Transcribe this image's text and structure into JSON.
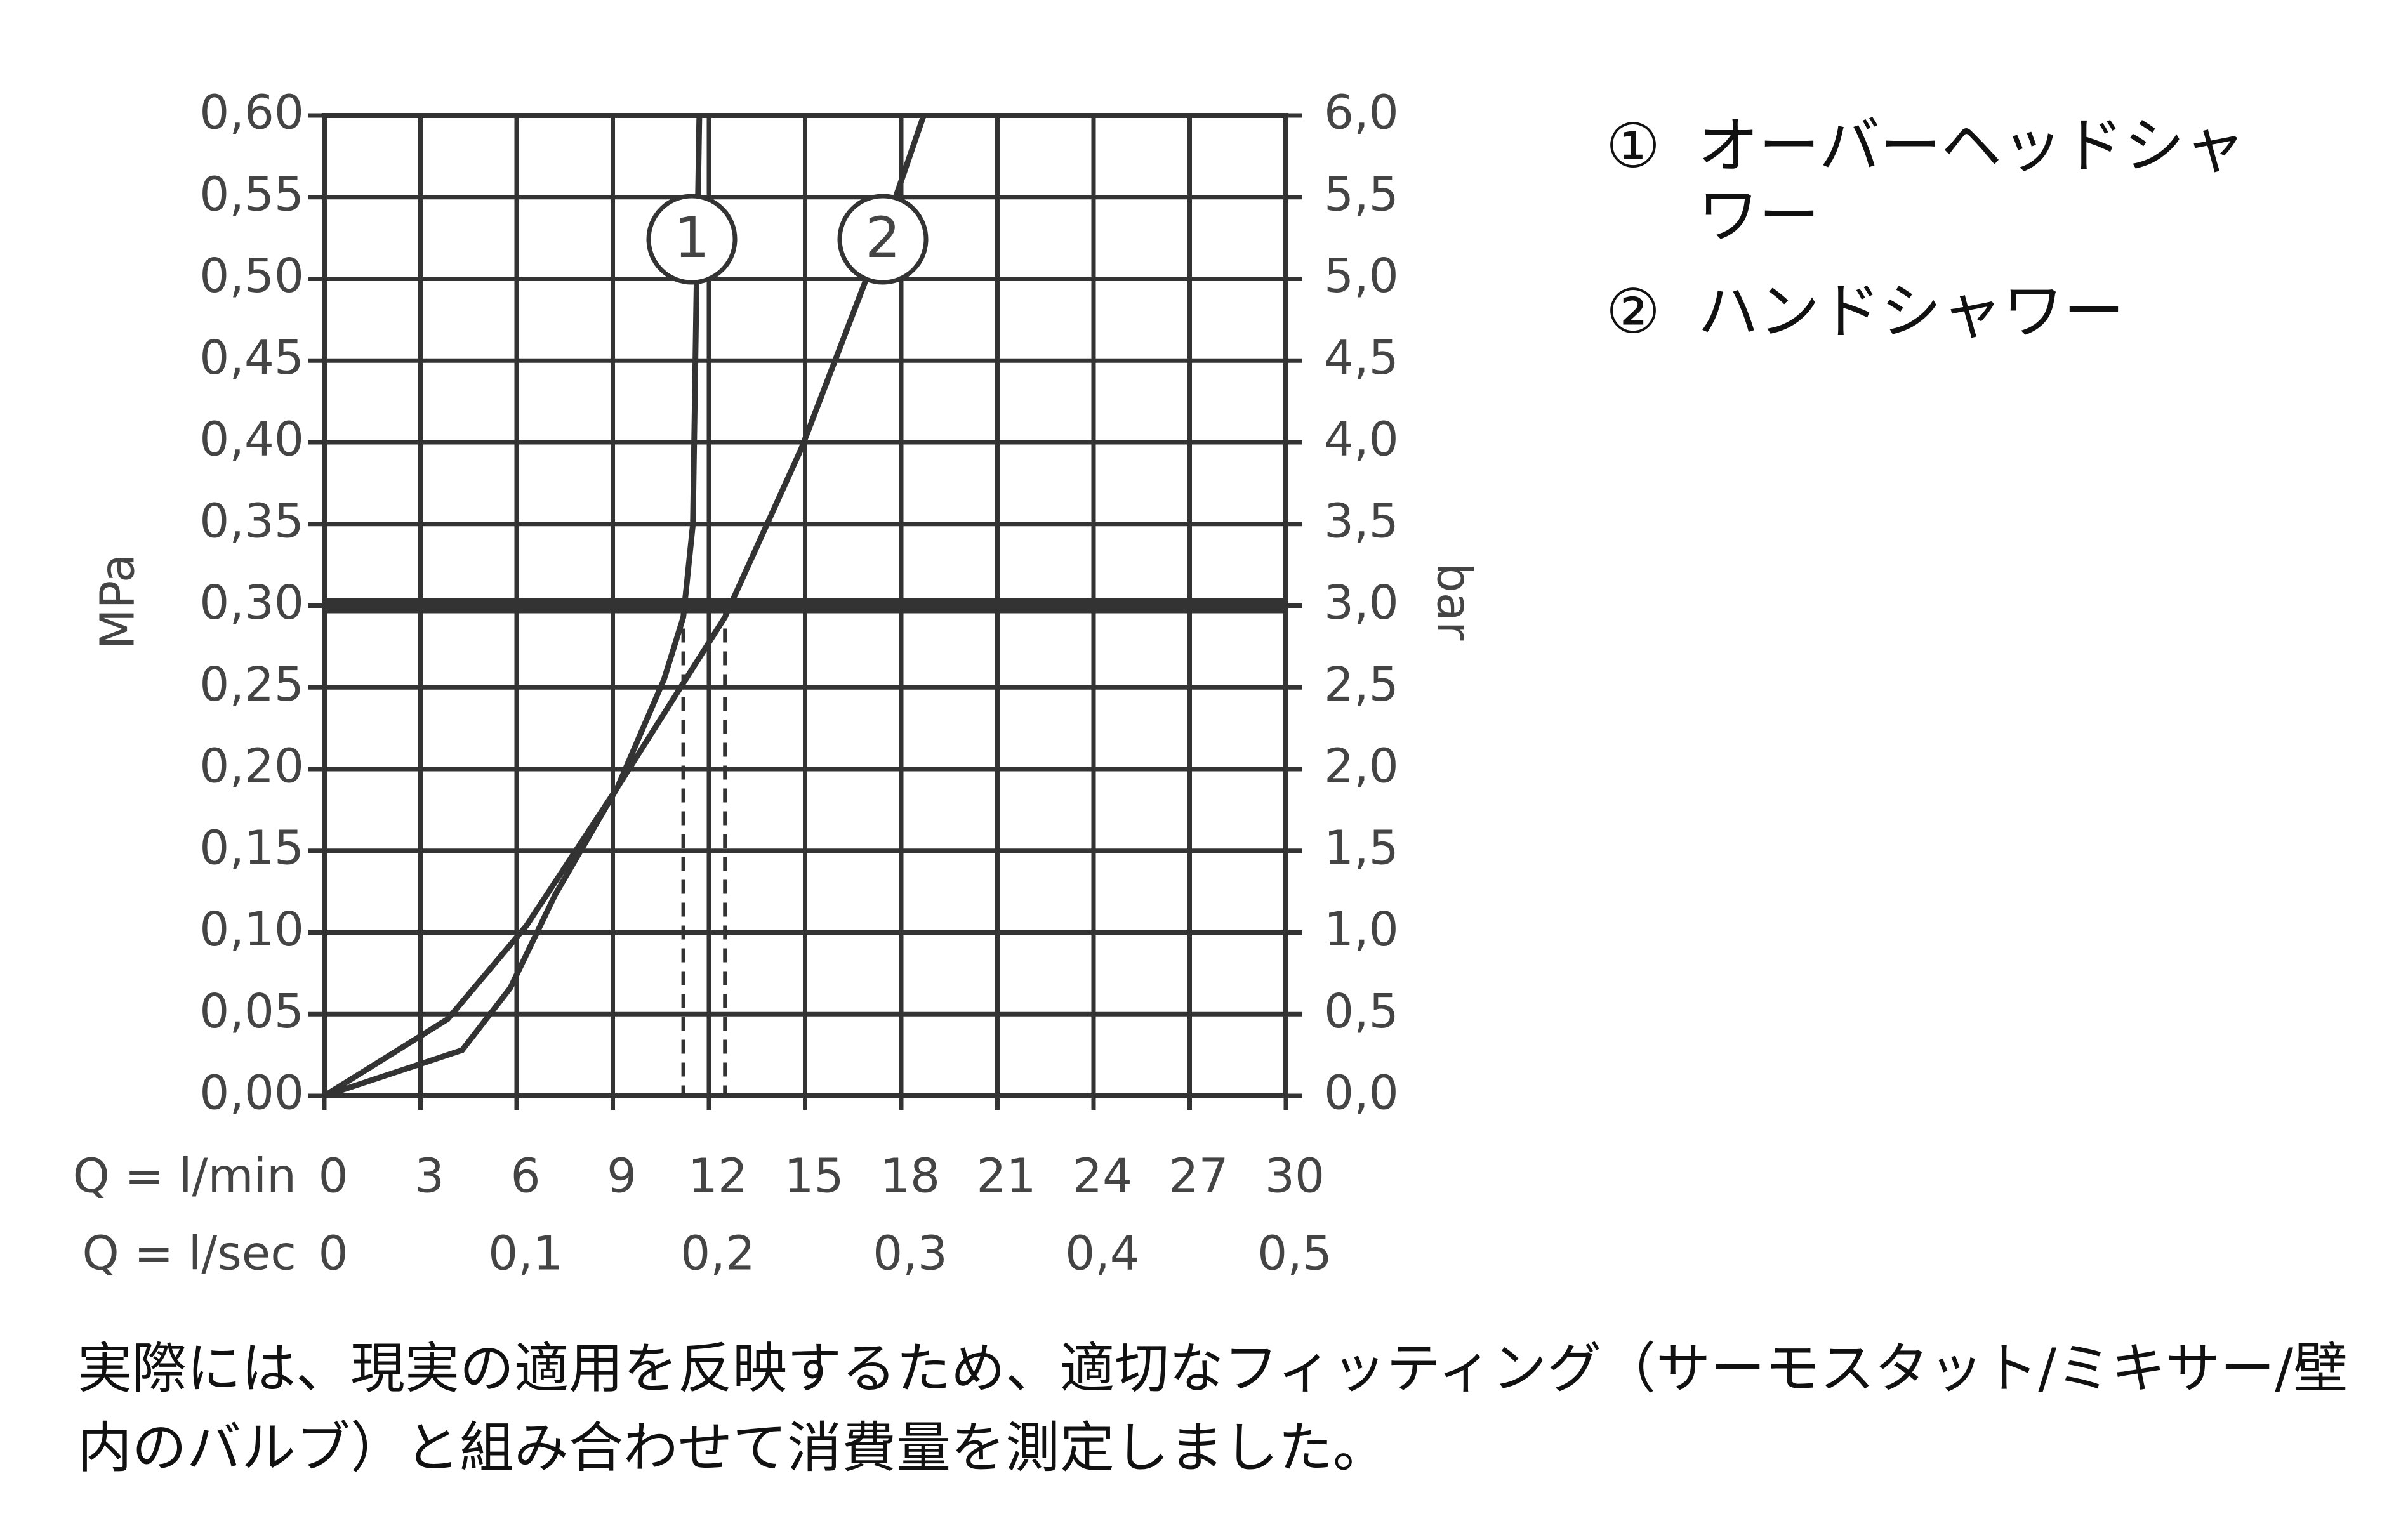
{
  "chart_data": {
    "type": "line",
    "ylabel": "MPa",
    "y2label": "bar",
    "xlabel": "Q = l/min",
    "x2label": "Q = l/sec",
    "xlim": [
      0,
      30
    ],
    "xticks": [
      0,
      3,
      6,
      9,
      12,
      15,
      18,
      21,
      24,
      27,
      30
    ],
    "x2lim": [
      0,
      0.5
    ],
    "x2ticks": [
      0,
      {
        "value": 0.1,
        "label": "0,1"
      },
      {
        "value": 0.2,
        "label": "0,2"
      },
      {
        "value": 0.3,
        "label": "0,3"
      },
      {
        "value": 0.4,
        "label": "0,4"
      },
      {
        "value": 0.5,
        "label": "0,5"
      }
    ],
    "ylim": [
      0,
      0.6
    ],
    "yticks": [
      {
        "value": 0,
        "label": "0,00"
      },
      {
        "value": 0.05,
        "label": "0,05"
      },
      {
        "value": 0.1,
        "label": "0,10"
      },
      {
        "value": 0.15,
        "label": "0,15"
      },
      {
        "value": 0.2,
        "label": "0,20"
      },
      {
        "value": 0.25,
        "label": "0,25"
      },
      {
        "value": 0.3,
        "label": "0,30"
      },
      {
        "value": 0.35,
        "label": "0,35"
      },
      {
        "value": 0.4,
        "label": "0,40"
      },
      {
        "value": 0.45,
        "label": "0,45"
      },
      {
        "value": 0.5,
        "label": "0,50"
      },
      {
        "value": 0.55,
        "label": "0,55"
      },
      {
        "value": 0.6,
        "label": "0,60"
      }
    ],
    "y2lim": [
      0,
      6
    ],
    "y2ticks": [
      {
        "value": 0,
        "label": "0,0"
      },
      {
        "value": 0.5,
        "label": "0,5"
      },
      {
        "value": 1,
        "label": "1,0"
      },
      {
        "value": 1.5,
        "label": "1,5"
      },
      {
        "value": 2,
        "label": "2,0"
      },
      {
        "value": 2.5,
        "label": "2,5"
      },
      {
        "value": 3,
        "label": "3,0"
      },
      {
        "value": 3.5,
        "label": "3,5"
      },
      {
        "value": 4,
        "label": "4,0"
      },
      {
        "value": 4.5,
        "label": "4,5"
      },
      {
        "value": 5,
        "label": "5,0"
      },
      {
        "value": 5.5,
        "label": "5,5"
      },
      {
        "value": 6,
        "label": "6,0"
      }
    ],
    "grid": true,
    "reference_y": 0.3,
    "dropline_x": [
      11.2,
      12.5
    ],
    "series": [
      {
        "name": "オーバーヘッドシャワー",
        "marker": "①",
        "curve_label": "1",
        "color": "#333333",
        "x": [
          0,
          4.3,
          5.8,
          7.2,
          9.15,
          10.6,
          11.2,
          11.5,
          11.6,
          11.7
        ],
        "values": [
          0,
          0.028,
          0.066,
          0.123,
          0.189,
          0.255,
          0.293,
          0.35,
          0.48,
          0.6
        ]
      },
      {
        "name": "ハンドシャワー",
        "marker": "②",
        "curve_label": "2",
        "color": "#333333",
        "x": [
          0,
          3.85,
          6.3,
          9.15,
          12.5,
          14.9,
          17.3,
          18.7
        ],
        "values": [
          0,
          0.047,
          0.104,
          0.189,
          0.293,
          0.397,
          0.52,
          0.6
        ]
      }
    ]
  },
  "footnote": "実際には、現実の適用を反映するため、適切なフィッティング（サーモスタット/ミキサー/壁内のバルブ）と組み合わせて消費量を測定しました。"
}
